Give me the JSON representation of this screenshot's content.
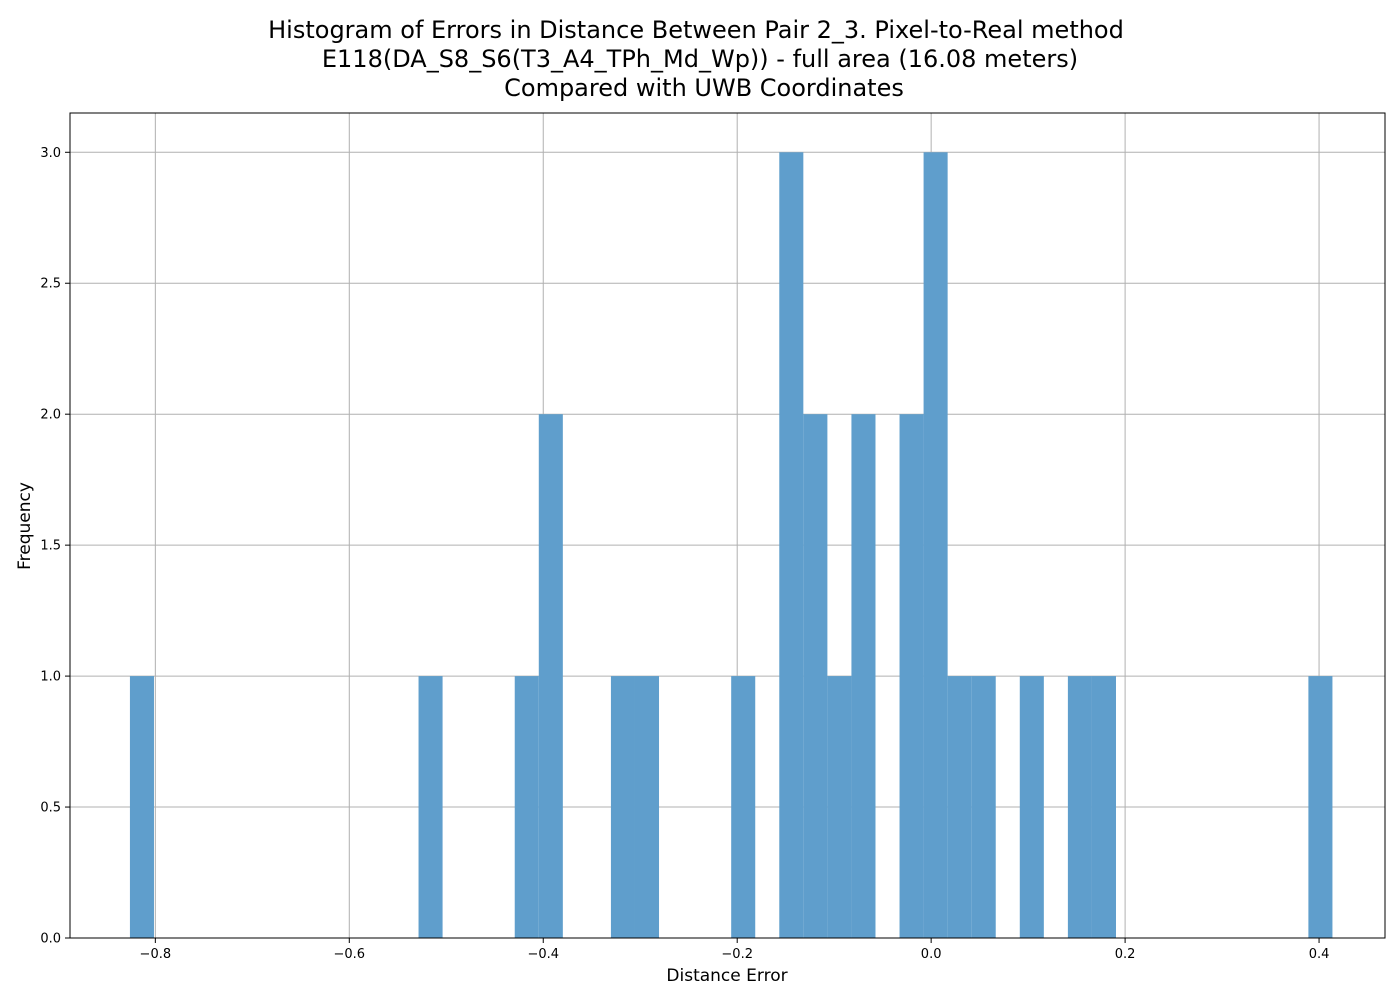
{
  "chart_data": {
    "type": "bar",
    "title_lines": [
      "Histogram of Errors in Distance Between Pair 2_3. Pixel-to-Real method",
      "E118(DA_S8_S6(T3_A4_TPh_Md_Wp)) - full area (16.08 meters)",
      "Compared with UWB Coordinates"
    ],
    "xlabel": "Distance Error",
    "ylabel": "Frequency",
    "xlim": [
      -0.888,
      0.468
    ],
    "ylim": [
      0,
      3.15
    ],
    "xticks": [
      -0.8,
      -0.6,
      -0.4,
      -0.2,
      0.0,
      0.2,
      0.4
    ],
    "xtick_labels": [
      "−0.8",
      "−0.6",
      "−0.4",
      "−0.2",
      "0.0",
      "0.2",
      "0.4"
    ],
    "yticks": [
      0.0,
      0.5,
      1.0,
      1.5,
      2.0,
      2.5,
      3.0
    ],
    "ytick_labels": [
      "0.0",
      "0.5",
      "1.0",
      "1.5",
      "2.0",
      "2.5",
      "3.0"
    ],
    "grid": true,
    "bar_color": "#5f9ecc",
    "bins": [
      {
        "x0": -0.8262,
        "x1": -0.8014,
        "count": 1
      },
      {
        "x0": -0.5286,
        "x1": -0.5038,
        "count": 1
      },
      {
        "x0": -0.4294,
        "x1": -0.4046,
        "count": 1
      },
      {
        "x0": -0.4046,
        "x1": -0.3798,
        "count": 2
      },
      {
        "x0": -0.3302,
        "x1": -0.3054,
        "count": 1
      },
      {
        "x0": -0.3054,
        "x1": -0.2806,
        "count": 1
      },
      {
        "x0": -0.2062,
        "x1": -0.1814,
        "count": 1
      },
      {
        "x0": -0.1566,
        "x1": -0.1318,
        "count": 3
      },
      {
        "x0": -0.1318,
        "x1": -0.107,
        "count": 2
      },
      {
        "x0": -0.107,
        "x1": -0.0822,
        "count": 1
      },
      {
        "x0": -0.0822,
        "x1": -0.0574,
        "count": 2
      },
      {
        "x0": -0.0326,
        "x1": -0.0078,
        "count": 2
      },
      {
        "x0": -0.0078,
        "x1": 0.017,
        "count": 3
      },
      {
        "x0": 0.017,
        "x1": 0.0418,
        "count": 1
      },
      {
        "x0": 0.0418,
        "x1": 0.0666,
        "count": 1
      },
      {
        "x0": 0.0914,
        "x1": 0.1162,
        "count": 1
      },
      {
        "x0": 0.141,
        "x1": 0.1658,
        "count": 1
      },
      {
        "x0": 0.1658,
        "x1": 0.1906,
        "count": 1
      },
      {
        "x0": 0.389,
        "x1": 0.4138,
        "count": 1
      }
    ]
  }
}
